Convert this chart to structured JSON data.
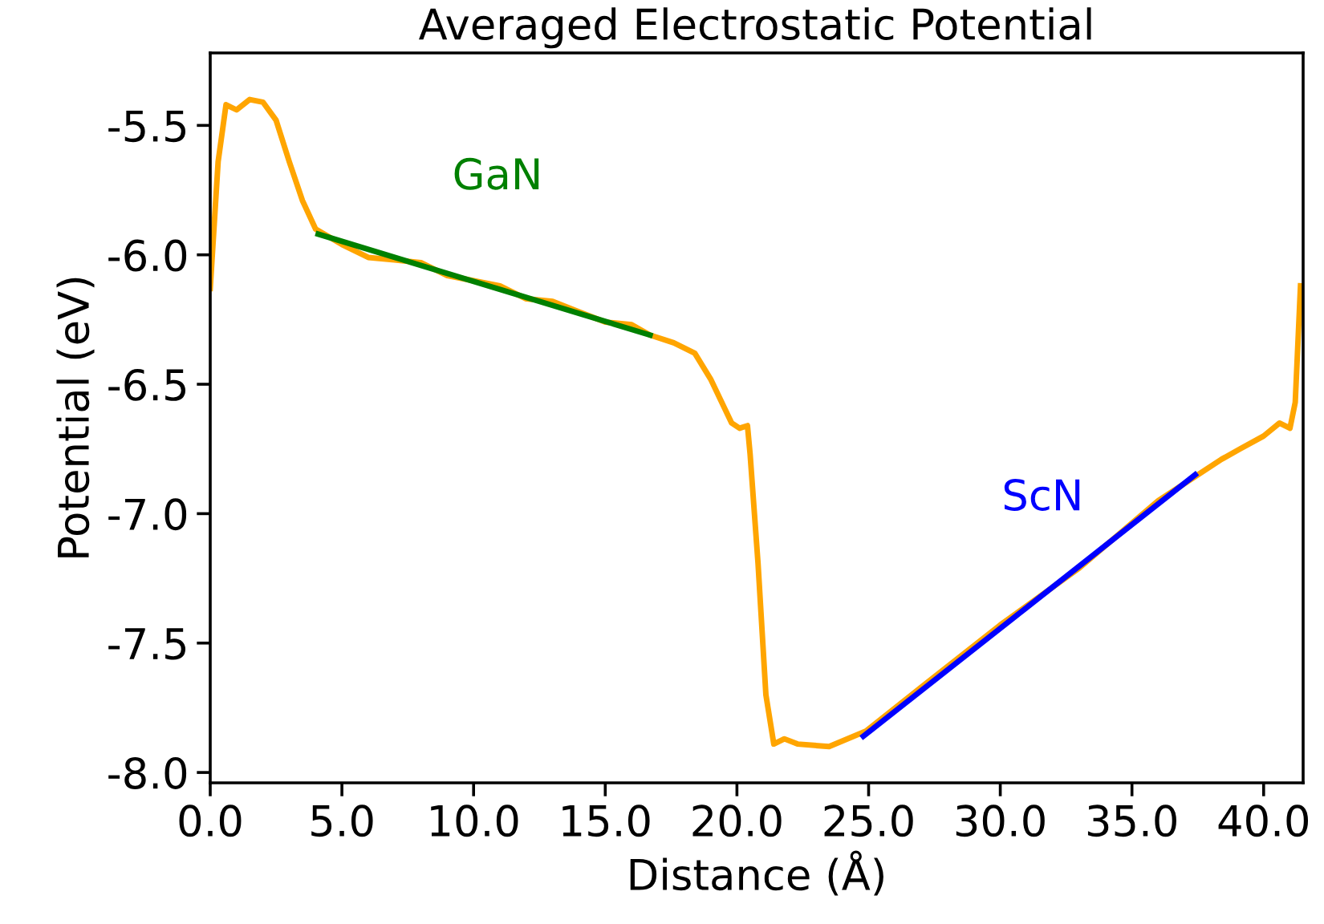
{
  "chart_data": {
    "type": "line",
    "title": "Averaged Electrostatic Potential",
    "xlabel": "Distance (Å)",
    "ylabel": "Potential (eV)",
    "series": [
      {
        "color": "#ffa500",
        "x": [
          0,
          0.3,
          0.6,
          1.0,
          1.5,
          2.0,
          2.5,
          3.0,
          3.5,
          4.0,
          5,
          6,
          7,
          8,
          9,
          10,
          11,
          12,
          13,
          14,
          15,
          16,
          16.7,
          17.6,
          18.4,
          19.0,
          19.8,
          20.1,
          20.4,
          20.5,
          20.8,
          21.1,
          21.4,
          21.8,
          22.3,
          23.5,
          24.9,
          27,
          30,
          33,
          36,
          38.4,
          39.1,
          40.0,
          40.6,
          41.0,
          41.2,
          41.4
        ],
        "values": [
          -6.13,
          -5.64,
          -5.42,
          -5.44,
          -5.4,
          -5.41,
          -5.48,
          -5.64,
          -5.79,
          -5.9,
          -5.96,
          -6.01,
          -6.02,
          -6.03,
          -6.08,
          -6.1,
          -6.12,
          -6.17,
          -6.18,
          -6.22,
          -6.26,
          -6.27,
          -6.31,
          -6.34,
          -6.38,
          -6.48,
          -6.65,
          -6.67,
          -6.66,
          -6.77,
          -7.19,
          -7.7,
          -7.89,
          -7.87,
          -7.89,
          -7.9,
          -7.84,
          -7.67,
          -7.43,
          -7.21,
          -6.95,
          -6.79,
          -6.75,
          -6.7,
          -6.65,
          -6.67,
          -6.57,
          -6.12
        ]
      },
      {
        "name": "GaN",
        "color": "#008000",
        "x": [
          4.1,
          16.7
        ],
        "values": [
          -5.92,
          -6.31
        ]
      },
      {
        "name": "ScN",
        "color": "#0000ff",
        "x": [
          24.8,
          37.4
        ],
        "values": [
          -7.86,
          -6.85
        ]
      }
    ],
    "xlim": [
      0,
      41.5
    ],
    "ylim": [
      -8.04,
      -5.22
    ],
    "xticks": [
      {
        "value": 0,
        "label": "0.0"
      },
      {
        "value": 5,
        "label": "5.0"
      },
      {
        "value": 10,
        "label": "10.0"
      },
      {
        "value": 15,
        "label": "15.0"
      },
      {
        "value": 20,
        "label": "20.0"
      },
      {
        "value": 25,
        "label": "25.0"
      },
      {
        "value": 30,
        "label": "30.0"
      },
      {
        "value": 35,
        "label": "35.0"
      },
      {
        "value": 40,
        "label": "40.0"
      }
    ],
    "yticks": [
      {
        "value": -8,
        "label": "-8.0"
      },
      {
        "value": -7.5,
        "label": "-7.5"
      },
      {
        "value": -7,
        "label": "-7.0"
      },
      {
        "value": -6.5,
        "label": "-6.5"
      },
      {
        "value": -6,
        "label": "-6.0"
      },
      {
        "value": -5.5,
        "label": "-5.5"
      }
    ],
    "grid": false,
    "legend": false
  }
}
